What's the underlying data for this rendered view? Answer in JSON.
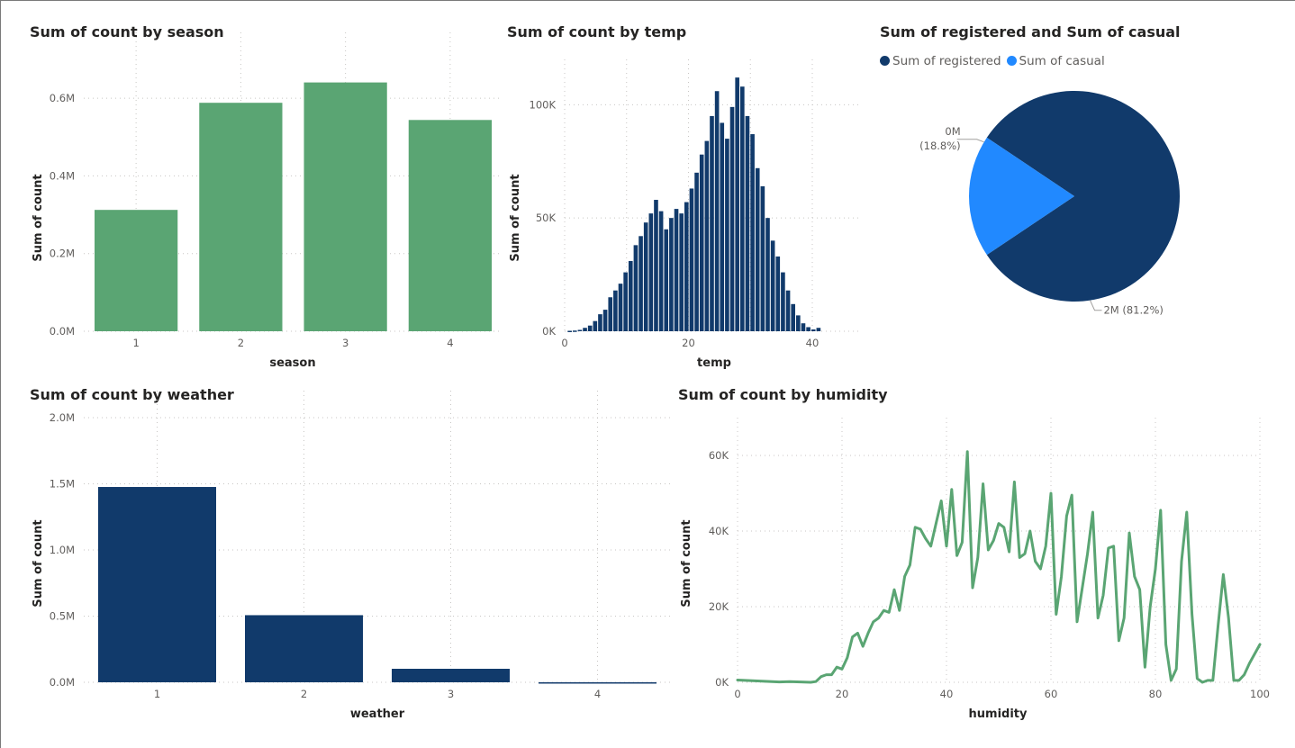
{
  "colors": {
    "green": "#5aa573",
    "navy": "#113a6b",
    "blue": "#2189ff"
  },
  "chart_data": [
    {
      "id": "season",
      "type": "bar",
      "title": "Sum of count by season",
      "xlabel": "season",
      "ylabel": "Sum of count",
      "categories": [
        "1",
        "2",
        "3",
        "4"
      ],
      "values": [
        312498,
        588282,
        640662,
        544034
      ],
      "ylim": [
        0,
        700000
      ],
      "yticks": [
        0,
        200000,
        400000,
        600000
      ],
      "ytick_labels": [
        "0.0M",
        "0.2M",
        "0.4M",
        "0.6M"
      ],
      "color": "#5aa573"
    },
    {
      "id": "temp",
      "type": "bar",
      "title": "Sum of count by temp",
      "xlabel": "temp",
      "ylabel": "Sum of count",
      "x": [
        0.82,
        1.64,
        2.46,
        3.28,
        4.1,
        4.92,
        5.74,
        6.56,
        7.38,
        8.2,
        9.02,
        9.84,
        10.66,
        11.48,
        12.3,
        13.12,
        13.94,
        14.76,
        15.58,
        16.4,
        17.22,
        18.04,
        18.86,
        19.68,
        20.5,
        21.32,
        22.14,
        22.96,
        23.78,
        24.6,
        25.42,
        26.24,
        27.06,
        27.88,
        28.7,
        29.52,
        30.34,
        31.16,
        31.98,
        32.8,
        33.62,
        34.44,
        35.26,
        36.08,
        36.9,
        37.72,
        38.54,
        39.36,
        40.18,
        41.0
      ],
      "values": [
        200,
        300,
        600,
        1500,
        2500,
        4500,
        7500,
        9500,
        15000,
        18000,
        21000,
        26000,
        31000,
        38000,
        42000,
        48000,
        52000,
        58000,
        53000,
        45000,
        50000,
        54000,
        52000,
        57000,
        63000,
        70000,
        78000,
        84000,
        95000,
        106000,
        92000,
        85000,
        99000,
        112000,
        108000,
        95000,
        87000,
        72000,
        64000,
        50000,
        40000,
        33000,
        26000,
        18000,
        12000,
        7000,
        3500,
        1800,
        800,
        1500
      ],
      "xlim": [
        0,
        48
      ],
      "xticks": [
        0,
        20,
        40
      ],
      "ylim": [
        0,
        120000
      ],
      "yticks": [
        0,
        50000,
        100000
      ],
      "ytick_labels": [
        "0K",
        "50K",
        "100K"
      ],
      "color": "#113a6b"
    },
    {
      "id": "pie",
      "type": "pie",
      "title": "Sum of registered and Sum of casual",
      "series": [
        {
          "name": "Sum of registered",
          "value": 0.812,
          "label": "2M (81.2%)",
          "color": "#113a6b"
        },
        {
          "name": "Sum of casual",
          "value": 0.188,
          "label": "0M\n(18.8%)",
          "color": "#2189ff"
        }
      ]
    },
    {
      "id": "weather",
      "type": "bar",
      "title": "Sum of count by weather",
      "xlabel": "weather",
      "ylabel": "Sum of count",
      "categories": [
        "1",
        "2",
        "3",
        "4"
      ],
      "values": [
        1476063,
        507160,
        102089,
        164
      ],
      "ylim": [
        0,
        2000000
      ],
      "yticks": [
        0,
        500000,
        1000000,
        1500000,
        2000000
      ],
      "ytick_labels": [
        "0.0M",
        "0.5M",
        "1.0M",
        "1.5M",
        "2.0M"
      ],
      "color": "#113a6b"
    },
    {
      "id": "humidity",
      "type": "line",
      "title": "Sum of count by humidity",
      "xlabel": "humidity",
      "ylabel": "Sum of count",
      "x": [
        0,
        8,
        10,
        12,
        14,
        15,
        16,
        17,
        18,
        19,
        20,
        21,
        22,
        23,
        24,
        25,
        26,
        27,
        28,
        29,
        30,
        31,
        32,
        33,
        34,
        35,
        36,
        37,
        38,
        39,
        40,
        41,
        42,
        43,
        44,
        45,
        46,
        47,
        48,
        49,
        50,
        51,
        52,
        53,
        54,
        55,
        56,
        57,
        58,
        59,
        60,
        61,
        62,
        63,
        64,
        65,
        66,
        67,
        68,
        69,
        70,
        71,
        72,
        73,
        74,
        75,
        76,
        77,
        78,
        79,
        80,
        81,
        82,
        83,
        84,
        85,
        86,
        87,
        88,
        89,
        90,
        91,
        92,
        93,
        94,
        95,
        96,
        97,
        98,
        100
      ],
      "values": [
        600,
        100,
        200,
        100,
        0,
        200,
        1500,
        2000,
        2000,
        4000,
        3500,
        6500,
        12000,
        13000,
        9500,
        13000,
        16000,
        17000,
        19000,
        18500,
        24500,
        19000,
        28000,
        31000,
        41000,
        40500,
        38000,
        36000,
        42000,
        48000,
        36000,
        51000,
        33500,
        37000,
        61000,
        25000,
        33000,
        52500,
        35000,
        37500,
        42000,
        41000,
        34500,
        53000,
        33000,
        34000,
        40000,
        32000,
        30000,
        36000,
        50000,
        18000,
        28000,
        44000,
        49500,
        16000,
        25000,
        34000,
        45000,
        17000,
        23000,
        35500,
        36000,
        11000,
        17000,
        39500,
        28000,
        24500,
        4000,
        20000,
        30000,
        45500,
        10000,
        500,
        3500,
        32000,
        45000,
        18000,
        1000,
        0,
        500,
        500,
        15000,
        28500,
        17000,
        500,
        500,
        2000,
        5000,
        10000
      ],
      "xlim": [
        0,
        100
      ],
      "xticks": [
        0,
        20,
        40,
        60,
        80,
        100
      ],
      "ylim": [
        0,
        70000
      ],
      "yticks": [
        0,
        20000,
        40000,
        60000
      ],
      "ytick_labels": [
        "0K",
        "20K",
        "40K",
        "60K"
      ],
      "color": "#5aa573"
    }
  ]
}
